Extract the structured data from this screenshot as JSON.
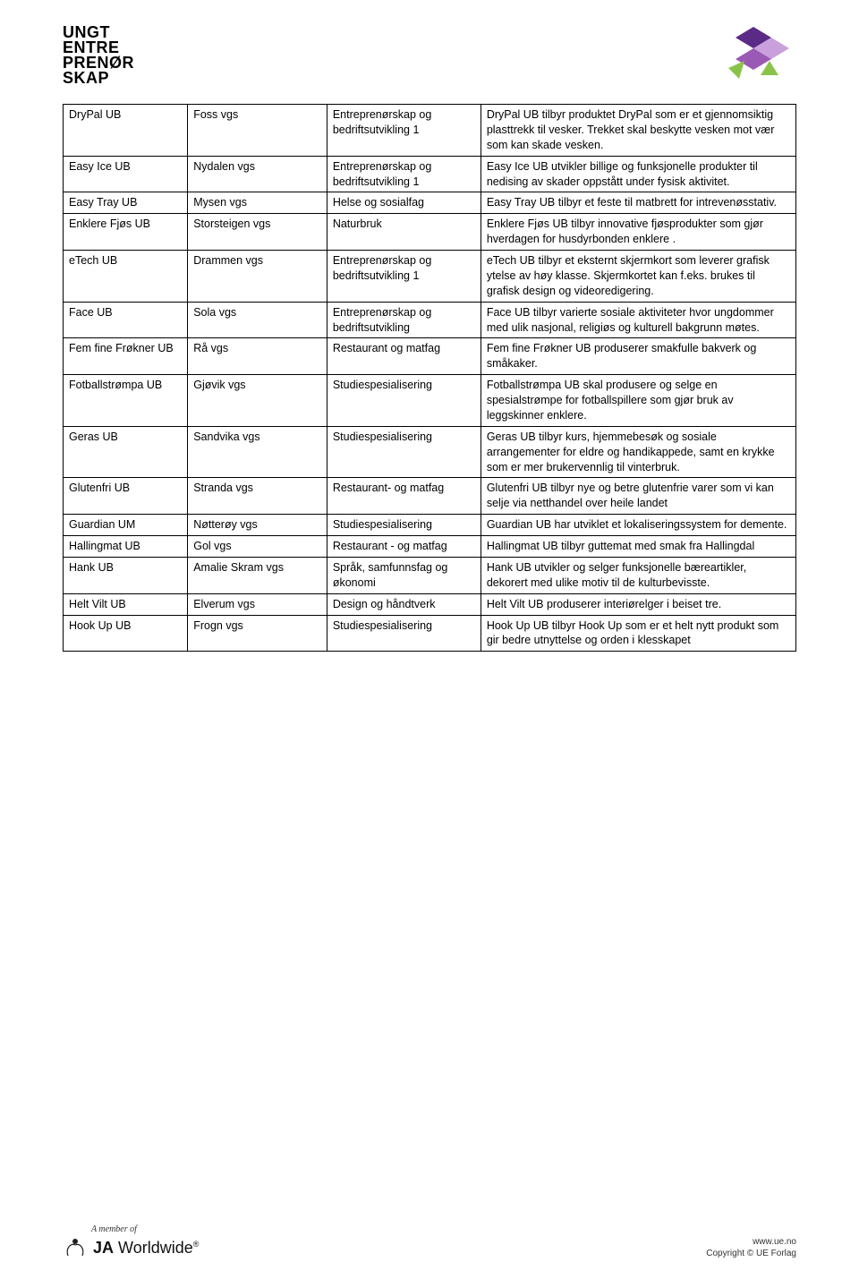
{
  "logo_lines": [
    "UNGT",
    "ENTRE",
    "PRENØR",
    "SKAP"
  ],
  "logo_colors": {
    "dark_purple": "#5b2a86",
    "light_purple": "#c9a0dc",
    "medium_purple": "#9b59b6",
    "green": "#8bc34a"
  },
  "table": {
    "col_widths": [
      "17%",
      "19%",
      "21%",
      "43%"
    ],
    "border_color": "#000000",
    "font_size": 12.5,
    "rows": [
      {
        "name": "DryPal UB",
        "school": "Foss vgs",
        "subject": "Entreprenørskap og bedriftsutvikling 1",
        "desc": "DryPal UB tilbyr produktet DryPal som er et gjennomsiktig plasttrekk til vesker. Trekket skal beskytte vesken mot vær som kan skade vesken."
      },
      {
        "name": "Easy Ice UB",
        "school": "Nydalen vgs",
        "subject": "Entreprenørskap og bedriftsutvikling 1",
        "desc": "Easy Ice UB utvikler billige og funksjonelle produkter til nedising av skader oppstått under fysisk aktivitet."
      },
      {
        "name": "Easy Tray UB",
        "school": "Mysen vgs",
        "subject": "Helse og sosialfag",
        "desc": "Easy Tray UB tilbyr et feste til matbrett for intrevenøsstativ."
      },
      {
        "name": "Enklere Fjøs UB",
        "school": "Storsteigen vgs",
        "subject": "Naturbruk",
        "desc": "Enklere Fjøs UB tilbyr innovative fjøsprodukter som gjør hverdagen for husdyrbonden enklere ."
      },
      {
        "name": "eTech UB",
        "school": "Drammen vgs",
        "subject": "Entreprenørskap og bedriftsutvikling 1",
        "desc": "eTech UB tilbyr et eksternt skjermkort som leverer grafisk ytelse av høy klasse. Skjermkortet kan f.eks. brukes til grafisk design og videoredigering."
      },
      {
        "name": "Face UB",
        "school": "Sola vgs",
        "subject": "Entreprenørskap og bedriftsutvikling",
        "desc": "Face UB tilbyr varierte sosiale aktiviteter hvor ungdommer med ulik nasjonal, religiøs og kulturell bakgrunn møtes."
      },
      {
        "name": "Fem fine Frøkner UB",
        "school": "Rå vgs",
        "subject": "Restaurant og matfag",
        "desc": "Fem fine Frøkner UB produserer smakfulle bakverk og småkaker."
      },
      {
        "name": "Fotballstrømpa UB",
        "school": "Gjøvik vgs",
        "subject": "Studiespesialisering",
        "desc": "Fotballstrømpa UB skal produsere og selge en spesialstrømpe for fotballspillere som gjør bruk av leggskinner enklere."
      },
      {
        "name": "Geras UB",
        "school": "Sandvika vgs",
        "subject": "Studiespesialisering",
        "desc": "Geras UB tilbyr kurs, hjemmebesøk og sosiale arrangementer for eldre og handikappede, samt en krykke som er mer brukervennlig til vinterbruk."
      },
      {
        "name": "Glutenfri UB",
        "school": "Stranda vgs",
        "subject": "Restaurant- og matfag",
        "desc": "Glutenfri UB tilbyr nye og betre glutenfrie varer som vi kan selje via netthandel over heile landet"
      },
      {
        "name": "Guardian UM",
        "school": "Nøtterøy vgs",
        "subject": "Studiespesialisering",
        "desc": "Guardian UB har utviklet et lokaliseringssystem for demente."
      },
      {
        "name": "Hallingmat UB",
        "school": "Gol vgs",
        "subject": "Restaurant - og matfag",
        "desc": "Hallingmat UB tilbyr guttemat med smak fra Hallingdal"
      },
      {
        "name": "Hank UB",
        "school": "Amalie Skram vgs",
        "subject": "Språk, samfunnsfag og økonomi",
        "desc": "Hank UB utvikler og selger funksjonelle bæreartikler, dekorert med ulike motiv til de kulturbevisste."
      },
      {
        "name": "Helt Vilt UB",
        "school": "Elverum vgs",
        "subject": "Design og håndtverk",
        "desc": "Helt Vilt UB produserer interiørelger i beiset tre."
      },
      {
        "name": "Hook Up UB",
        "school": "Frogn vgs",
        "subject": "Studiespesialisering",
        "desc": "Hook Up UB tilbyr Hook Up som er et helt nytt produkt som gir bedre utnyttelse og orden i klesskapet"
      }
    ]
  },
  "footer": {
    "member_of": "A member of",
    "ja_bold": "JA",
    "ja_rest": "Worldwide",
    "site": "www.ue.no",
    "copyright": "Copyright © UE Forlag"
  }
}
